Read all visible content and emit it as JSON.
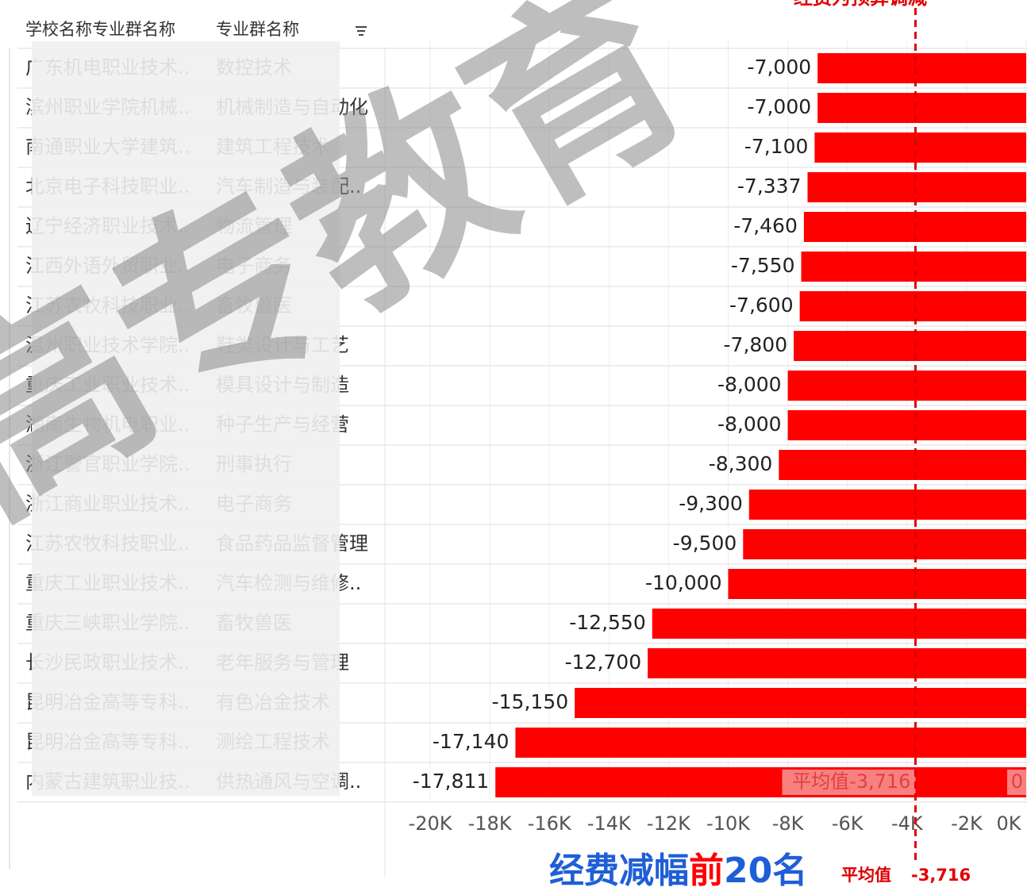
{
  "chart_data": {
    "type": "bar",
    "orientation": "horizontal",
    "header": [
      "学校名称专业群名称",
      "专业群名称"
    ],
    "title": "经费为预算调减",
    "watermark": "高专教育",
    "categories": [
      [
        "广东机电职业技术..",
        "数控技术"
      ],
      [
        "滨州职业学院机械..",
        "机械制造与自动化"
      ],
      [
        "南通职业大学建筑..",
        "建筑工程技术"
      ],
      [
        "北京电子科技职业..",
        "汽车制造与装配.."
      ],
      [
        "辽宁经济职业技术..",
        "物流管理"
      ],
      [
        "江西外语外贸职业..",
        "电子商务"
      ],
      [
        "江苏农牧科技职业..",
        "畜牧兽医"
      ],
      [
        "温州职业技术学院..",
        "鞋类设计与工艺"
      ],
      [
        "重庆工业职业技术..",
        "模具设计与制造"
      ],
      [
        "湖南生物机电职业..",
        "种子生产与经营"
      ],
      [
        "浙江警官职业学院..",
        "刑事执行"
      ],
      [
        "浙江商业职业技术..",
        "电子商务"
      ],
      [
        "江苏农牧科技职业..",
        "食品药品监督管理"
      ],
      [
        "重庆工业职业技术..",
        "汽车检测与维修.."
      ],
      [
        "重庆三峡职业学院..",
        "畜牧兽医"
      ],
      [
        "长沙民政职业技术..",
        "老年服务与管理"
      ],
      [
        "昆明冶金高等专科..",
        "有色冶金技术"
      ],
      [
        "昆明冶金高等专科..",
        "测绘工程技术"
      ],
      [
        "内蒙古建筑职业技..",
        "供热通风与空调.."
      ]
    ],
    "values": [
      -7000,
      -7000,
      -7100,
      -7337,
      -7460,
      -7550,
      -7600,
      -7800,
      -8000,
      -8000,
      -8300,
      -9300,
      -9500,
      -10000,
      -12550,
      -12700,
      -15150,
      -17140,
      -17811
    ],
    "value_labels": [
      "-7,000",
      "-7,000",
      "-7,100",
      "-7,337",
      "-7,460",
      "-7,550",
      "-7,600",
      "-7,800",
      "-8,000",
      "-8,000",
      "-8,300",
      "-9,300",
      "-9,500",
      "-10,000",
      "-12,550",
      "-12,700",
      "-15,150",
      "-17,140",
      "-17,811"
    ],
    "color": "#ff0000",
    "xlim": [
      -20000,
      0
    ],
    "xticks": [
      {
        "value": -20000,
        "label": "-20K"
      },
      {
        "value": -18000,
        "label": "-18K"
      },
      {
        "value": -16000,
        "label": "-16K"
      },
      {
        "value": -14000,
        "label": "-14K"
      },
      {
        "value": -12000,
        "label": "-12K"
      },
      {
        "value": -10000,
        "label": "-10K"
      },
      {
        "value": -8000,
        "label": "-8K"
      },
      {
        "value": -6000,
        "label": "-6K"
      },
      {
        "value": -4000,
        "label": "-4K"
      },
      {
        "value": -2000,
        "label": "-2K"
      },
      {
        "value": 0,
        "label": "0K"
      }
    ],
    "grid": true,
    "reference_line": {
      "value": -3716,
      "label": "平均值-3,716",
      "color": "#e00000"
    },
    "zero_label": 0,
    "caption": {
      "parts": [
        "经费减幅",
        "前",
        "20名"
      ],
      "note": "平均值",
      "note_value": "-3,716"
    }
  }
}
